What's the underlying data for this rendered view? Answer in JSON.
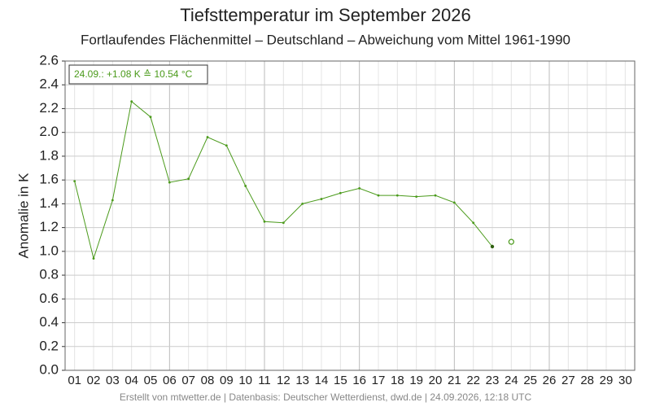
{
  "chart_data": {
    "type": "line",
    "title": "Tiefsttemperatur im September 2026",
    "subtitle": "Fortlaufendes Flächenmittel – Deutschland – Abweichung vom Mittel 1961-1990",
    "y_label": "Anomalie in K",
    "annotation": "24.09.: +1.08 K ≙ 10.54 °C",
    "footer": "Erstellt von mtwetter.de | Datenbasis: Deutscher Wetterdienst, dwd.de | 24.09.2026, 12:18 UTC",
    "categories": [
      "01",
      "02",
      "03",
      "04",
      "05",
      "06",
      "07",
      "08",
      "09",
      "10",
      "11",
      "12",
      "13",
      "14",
      "15",
      "16",
      "17",
      "18",
      "19",
      "20",
      "21",
      "22",
      "23",
      "24",
      "25",
      "26",
      "27",
      "28",
      "29",
      "30"
    ],
    "series": [
      {
        "color": "#4a9a1a",
        "values": [
          1.59,
          0.94,
          1.43,
          2.26,
          2.13,
          1.58,
          1.61,
          1.96,
          1.89,
          1.55,
          1.25,
          1.24,
          1.4,
          1.44,
          1.49,
          1.53,
          1.47,
          1.47,
          1.46,
          1.47,
          1.41,
          1.24,
          1.04,
          null,
          null,
          null,
          null,
          null,
          null,
          null
        ]
      },
      {
        "color": "#4a9a1a",
        "values": [
          null,
          null,
          null,
          null,
          null,
          null,
          null,
          null,
          null,
          null,
          null,
          null,
          null,
          null,
          null,
          null,
          null,
          null,
          null,
          null,
          null,
          null,
          null,
          1.08,
          null,
          null,
          null,
          null,
          null,
          null
        ]
      }
    ],
    "ylim": [
      0,
      2.6
    ],
    "yticks": [
      {
        "value": 0,
        "label": "0.0"
      },
      0.2,
      0.4,
      0.6,
      0.8,
      {
        "value": 1,
        "label": "1.0"
      },
      1.2,
      1.4,
      1.6,
      1.8,
      {
        "value": 2,
        "label": "2.0"
      },
      2.2,
      2.4,
      2.6
    ],
    "grid": true
  }
}
